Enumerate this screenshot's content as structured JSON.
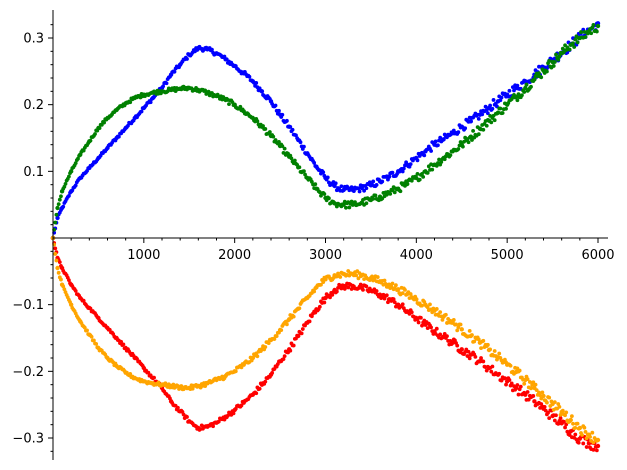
{
  "chart_data": {
    "type": "scatter",
    "title": "",
    "xlabel": "",
    "ylabel": "",
    "xlim": [
      0,
      6000
    ],
    "ylim": [
      -0.33,
      0.33
    ],
    "x_ticks": [
      1000,
      2000,
      3000,
      4000,
      5000,
      6000
    ],
    "x_tick_labels": [
      "1000",
      "2000",
      "3000",
      "4000",
      "5000",
      "6000"
    ],
    "y_ticks": [
      -0.3,
      -0.2,
      -0.1,
      0.1,
      0.2,
      0.3
    ],
    "y_tick_labels": [
      "−0.3",
      "−0.2",
      "−0.1",
      "0.1",
      "0.2",
      "0.3"
    ],
    "grid": false,
    "legend": "none",
    "series": [
      {
        "color": "#0000ff",
        "x": [
          0,
          50,
          100,
          200,
          300,
          400,
          500,
          600,
          700,
          800,
          900,
          1000,
          1100,
          1200,
          1300,
          1400,
          1500,
          1600,
          1700,
          1800,
          1900,
          2000,
          2100,
          2200,
          2300,
          2400,
          2500,
          2600,
          2700,
          2800,
          2900,
          3000,
          3100,
          3200,
          3300,
          3400,
          3500,
          3600,
          3700,
          3800,
          3900,
          4000,
          4100,
          4200,
          4300,
          4400,
          4500,
          4600,
          4700,
          4800,
          4900,
          5000,
          5100,
          5200,
          5300,
          5400,
          5500,
          5600,
          5700,
          5800,
          5900,
          6000
        ],
        "y": [
          0.0,
          0.03,
          0.045,
          0.07,
          0.09,
          0.105,
          0.12,
          0.135,
          0.15,
          0.165,
          0.18,
          0.195,
          0.21,
          0.225,
          0.245,
          0.26,
          0.275,
          0.285,
          0.283,
          0.277,
          0.268,
          0.258,
          0.247,
          0.235,
          0.22,
          0.205,
          0.185,
          0.167,
          0.147,
          0.127,
          0.107,
          0.09,
          0.078,
          0.072,
          0.072,
          0.075,
          0.079,
          0.085,
          0.092,
          0.1,
          0.11,
          0.12,
          0.13,
          0.14,
          0.148,
          0.157,
          0.167,
          0.175,
          0.185,
          0.195,
          0.205,
          0.215,
          0.225,
          0.235,
          0.245,
          0.256,
          0.267,
          0.278,
          0.29,
          0.301,
          0.312,
          0.322
        ]
      },
      {
        "color": "#008000",
        "x": [
          0,
          50,
          100,
          200,
          300,
          400,
          500,
          600,
          700,
          800,
          900,
          1000,
          1100,
          1200,
          1300,
          1400,
          1500,
          1600,
          1700,
          1800,
          1900,
          2000,
          2100,
          2200,
          2300,
          2400,
          2500,
          2600,
          2700,
          2800,
          2900,
          3000,
          3100,
          3200,
          3300,
          3400,
          3500,
          3600,
          3700,
          3800,
          3900,
          4000,
          4100,
          4200,
          4300,
          4400,
          4500,
          4600,
          4700,
          4800,
          4900,
          5000,
          5100,
          5200,
          5300,
          5400,
          5500,
          5600,
          5700,
          5800,
          5900,
          6000
        ],
        "y": [
          0.0,
          0.045,
          0.07,
          0.1,
          0.125,
          0.145,
          0.165,
          0.18,
          0.192,
          0.202,
          0.21,
          0.215,
          0.218,
          0.22,
          0.222,
          0.224,
          0.225,
          0.222,
          0.218,
          0.213,
          0.207,
          0.2,
          0.19,
          0.18,
          0.167,
          0.153,
          0.138,
          0.122,
          0.106,
          0.09,
          0.074,
          0.06,
          0.052,
          0.05,
          0.05,
          0.053,
          0.057,
          0.062,
          0.068,
          0.074,
          0.081,
          0.09,
          0.1,
          0.11,
          0.12,
          0.13,
          0.14,
          0.152,
          0.164,
          0.176,
          0.188,
          0.2,
          0.212,
          0.225,
          0.238,
          0.251,
          0.264,
          0.277,
          0.29,
          0.3,
          0.31,
          0.318
        ]
      },
      {
        "color": "#ff0000",
        "x": [
          0,
          50,
          100,
          200,
          300,
          400,
          500,
          600,
          700,
          800,
          900,
          1000,
          1100,
          1200,
          1300,
          1400,
          1500,
          1600,
          1700,
          1800,
          1900,
          2000,
          2100,
          2200,
          2300,
          2400,
          2500,
          2600,
          2700,
          2800,
          2900,
          3000,
          3100,
          3200,
          3300,
          3400,
          3500,
          3600,
          3700,
          3800,
          3900,
          4000,
          4100,
          4200,
          4300,
          4400,
          4500,
          4600,
          4700,
          4800,
          4900,
          5000,
          5100,
          5200,
          5300,
          5400,
          5500,
          5600,
          5700,
          5800,
          5900,
          6000
        ],
        "y": [
          0.0,
          -0.03,
          -0.045,
          -0.07,
          -0.09,
          -0.105,
          -0.12,
          -0.135,
          -0.15,
          -0.165,
          -0.18,
          -0.195,
          -0.21,
          -0.225,
          -0.245,
          -0.26,
          -0.275,
          -0.285,
          -0.283,
          -0.277,
          -0.268,
          -0.258,
          -0.247,
          -0.235,
          -0.22,
          -0.205,
          -0.185,
          -0.167,
          -0.147,
          -0.127,
          -0.107,
          -0.09,
          -0.078,
          -0.072,
          -0.072,
          -0.075,
          -0.079,
          -0.085,
          -0.092,
          -0.1,
          -0.11,
          -0.12,
          -0.13,
          -0.14,
          -0.148,
          -0.157,
          -0.167,
          -0.175,
          -0.185,
          -0.195,
          -0.205,
          -0.215,
          -0.225,
          -0.235,
          -0.245,
          -0.256,
          -0.267,
          -0.278,
          -0.29,
          -0.301,
          -0.308,
          -0.312
        ]
      },
      {
        "color": "#ffa500",
        "x": [
          0,
          50,
          100,
          200,
          300,
          400,
          500,
          600,
          700,
          800,
          900,
          1000,
          1100,
          1200,
          1300,
          1400,
          1500,
          1600,
          1700,
          1800,
          1900,
          2000,
          2100,
          2200,
          2300,
          2400,
          2500,
          2600,
          2700,
          2800,
          2900,
          3000,
          3100,
          3200,
          3300,
          3400,
          3500,
          3600,
          3700,
          3800,
          3900,
          4000,
          4100,
          4200,
          4300,
          4400,
          4500,
          4600,
          4700,
          4800,
          4900,
          5000,
          5100,
          5200,
          5300,
          5400,
          5500,
          5600,
          5700,
          5800,
          5900,
          6000
        ],
        "y": [
          0.0,
          -0.045,
          -0.07,
          -0.1,
          -0.125,
          -0.145,
          -0.165,
          -0.18,
          -0.192,
          -0.202,
          -0.21,
          -0.215,
          -0.218,
          -0.22,
          -0.222,
          -0.224,
          -0.225,
          -0.222,
          -0.218,
          -0.213,
          -0.207,
          -0.2,
          -0.19,
          -0.18,
          -0.167,
          -0.153,
          -0.138,
          -0.122,
          -0.106,
          -0.09,
          -0.074,
          -0.062,
          -0.056,
          -0.054,
          -0.054,
          -0.056,
          -0.06,
          -0.065,
          -0.07,
          -0.077,
          -0.084,
          -0.092,
          -0.1,
          -0.109,
          -0.118,
          -0.127,
          -0.137,
          -0.147,
          -0.157,
          -0.168,
          -0.179,
          -0.19,
          -0.201,
          -0.213,
          -0.225,
          -0.237,
          -0.249,
          -0.261,
          -0.273,
          -0.285,
          -0.295,
          -0.303
        ]
      }
    ]
  }
}
